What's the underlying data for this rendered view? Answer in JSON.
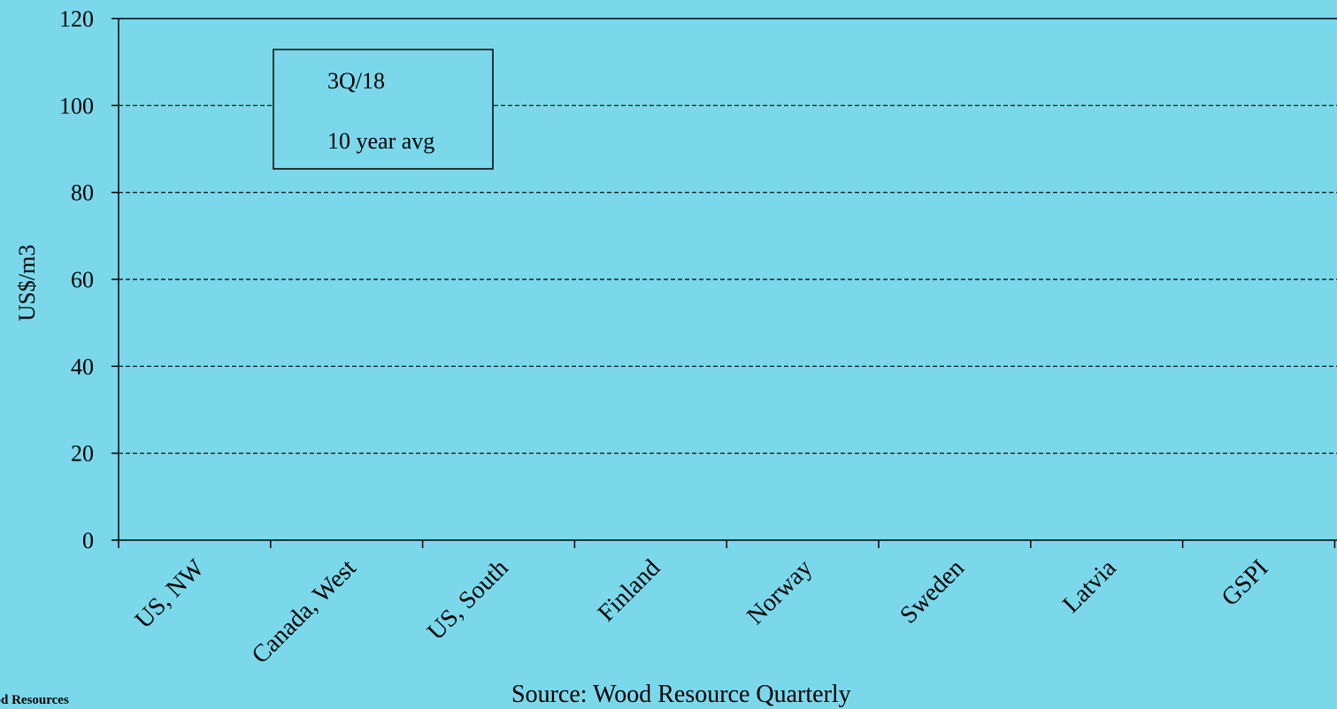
{
  "chart_data": {
    "type": "bar",
    "categories": [
      "US, NW",
      "Canada, West",
      "US, South",
      "Finland",
      "Norway",
      "Sweden",
      "Latvia",
      "GSPI"
    ],
    "series": [
      {
        "name": "3Q/18",
        "values": [
          null,
          null,
          null,
          null,
          null,
          null,
          null,
          null
        ]
      },
      {
        "name": "10 year avg",
        "values": [
          null,
          null,
          null,
          null,
          null,
          null,
          null,
          null
        ]
      }
    ],
    "title": "",
    "xlabel": "",
    "ylabel": "US$/m3",
    "ylim": [
      0,
      120
    ],
    "yticks": [
      0,
      20,
      40,
      60,
      80,
      100,
      120
    ],
    "grid": true,
    "legend_position": "top-left"
  },
  "footer": {
    "source": "Source: Wood Resource Quarterly",
    "organization": "ood Resources"
  },
  "colors": {
    "background": "#7ad8ea",
    "axis": "#000000",
    "gridline": "#000000",
    "legend_fill": "#7ad8ea"
  }
}
